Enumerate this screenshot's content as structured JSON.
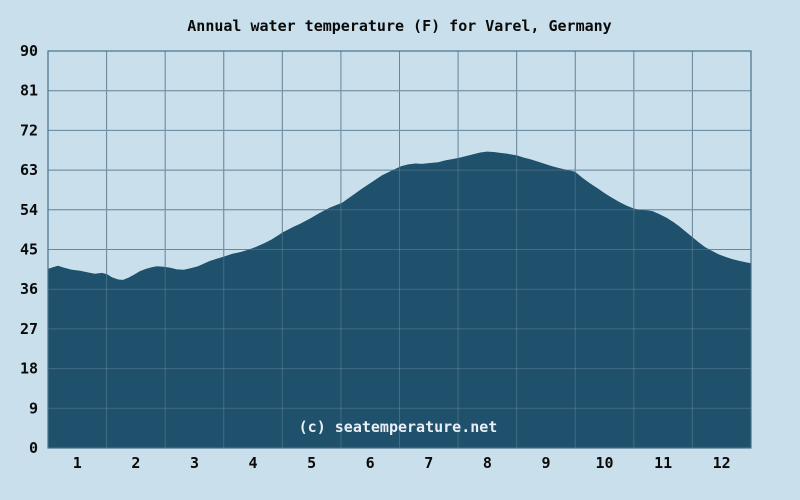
{
  "chart_data": {
    "type": "area",
    "title": "Annual water temperature (F) for Varel, Germany",
    "watermark": "(c) seatemperature.net",
    "xlabel": "",
    "ylabel": "",
    "x_range": [
      0,
      12
    ],
    "y_range": [
      0,
      90
    ],
    "y_ticks": [
      0,
      9,
      18,
      27,
      36,
      45,
      54,
      63,
      72,
      81,
      90
    ],
    "x_ticks": [
      "1",
      "2",
      "3",
      "4",
      "5",
      "6",
      "7",
      "8",
      "9",
      "10",
      "11",
      "12"
    ],
    "grid": true,
    "legend": "none",
    "colors": {
      "background": "#c9e0ec",
      "area": "#1f506c",
      "grid": "#4a7088",
      "text": "#0a0a0a",
      "watermark": "#e9eff4"
    },
    "monthly_center_values_f": [
      40.3,
      39.6,
      41.0,
      45.3,
      52.2,
      60.0,
      64.6,
      67.2,
      64.3,
      57.8,
      52.5,
      43.6
    ],
    "series": [
      {
        "name": "Water temperature (F)",
        "points": [
          [
            0.0,
            40.6
          ],
          [
            0.09,
            41.0
          ],
          [
            0.17,
            41.3
          ],
          [
            0.27,
            40.9
          ],
          [
            0.41,
            40.4
          ],
          [
            0.55,
            40.2
          ],
          [
            0.68,
            39.8
          ],
          [
            0.8,
            39.5
          ],
          [
            0.92,
            39.7
          ],
          [
            1.01,
            39.4
          ],
          [
            1.09,
            38.7
          ],
          [
            1.2,
            38.2
          ],
          [
            1.28,
            38.1
          ],
          [
            1.37,
            38.6
          ],
          [
            1.47,
            39.3
          ],
          [
            1.57,
            40.1
          ],
          [
            1.67,
            40.6
          ],
          [
            1.78,
            41.0
          ],
          [
            1.86,
            41.2
          ],
          [
            1.97,
            41.1
          ],
          [
            2.08,
            40.9
          ],
          [
            2.2,
            40.5
          ],
          [
            2.32,
            40.4
          ],
          [
            2.45,
            40.8
          ],
          [
            2.56,
            41.2
          ],
          [
            2.66,
            41.8
          ],
          [
            2.76,
            42.4
          ],
          [
            2.88,
            42.9
          ],
          [
            3.0,
            43.4
          ],
          [
            3.14,
            44.0
          ],
          [
            3.28,
            44.4
          ],
          [
            3.41,
            44.9
          ],
          [
            3.55,
            45.6
          ],
          [
            3.69,
            46.4
          ],
          [
            3.82,
            47.3
          ],
          [
            4.01,
            48.9
          ],
          [
            4.17,
            50.0
          ],
          [
            4.3,
            50.8
          ],
          [
            4.47,
            52.0
          ],
          [
            4.64,
            53.3
          ],
          [
            4.81,
            54.5
          ],
          [
            5.02,
            55.6
          ],
          [
            5.19,
            57.2
          ],
          [
            5.36,
            58.8
          ],
          [
            5.53,
            60.3
          ],
          [
            5.7,
            61.8
          ],
          [
            5.87,
            62.9
          ],
          [
            6.03,
            63.9
          ],
          [
            6.15,
            64.3
          ],
          [
            6.27,
            64.5
          ],
          [
            6.38,
            64.4
          ],
          [
            6.52,
            64.6
          ],
          [
            6.66,
            64.8
          ],
          [
            6.78,
            65.2
          ],
          [
            6.9,
            65.5
          ],
          [
            7.02,
            65.8
          ],
          [
            7.14,
            66.2
          ],
          [
            7.26,
            66.6
          ],
          [
            7.38,
            67.0
          ],
          [
            7.49,
            67.2
          ],
          [
            7.61,
            67.1
          ],
          [
            7.72,
            66.9
          ],
          [
            7.85,
            66.7
          ],
          [
            8.01,
            66.3
          ],
          [
            8.13,
            65.8
          ],
          [
            8.25,
            65.4
          ],
          [
            8.37,
            64.9
          ],
          [
            8.48,
            64.4
          ],
          [
            8.6,
            63.9
          ],
          [
            8.71,
            63.5
          ],
          [
            8.81,
            63.2
          ],
          [
            8.91,
            62.9
          ],
          [
            9.0,
            62.6
          ],
          [
            9.11,
            61.4
          ],
          [
            9.25,
            60.0
          ],
          [
            9.39,
            58.8
          ],
          [
            9.51,
            57.7
          ],
          [
            9.63,
            56.7
          ],
          [
            9.76,
            55.7
          ],
          [
            9.88,
            54.9
          ],
          [
            10.0,
            54.3
          ],
          [
            10.1,
            54.0
          ],
          [
            10.22,
            53.9
          ],
          [
            10.32,
            53.7
          ],
          [
            10.44,
            53.0
          ],
          [
            10.56,
            52.2
          ],
          [
            10.68,
            51.2
          ],
          [
            10.79,
            50.1
          ],
          [
            10.89,
            49.0
          ],
          [
            11.0,
            47.8
          ],
          [
            11.1,
            46.7
          ],
          [
            11.21,
            45.6
          ],
          [
            11.33,
            44.7
          ],
          [
            11.45,
            43.9
          ],
          [
            11.57,
            43.3
          ],
          [
            11.69,
            42.8
          ],
          [
            11.81,
            42.4
          ],
          [
            11.91,
            42.1
          ],
          [
            12.0,
            41.9
          ]
        ]
      }
    ]
  }
}
